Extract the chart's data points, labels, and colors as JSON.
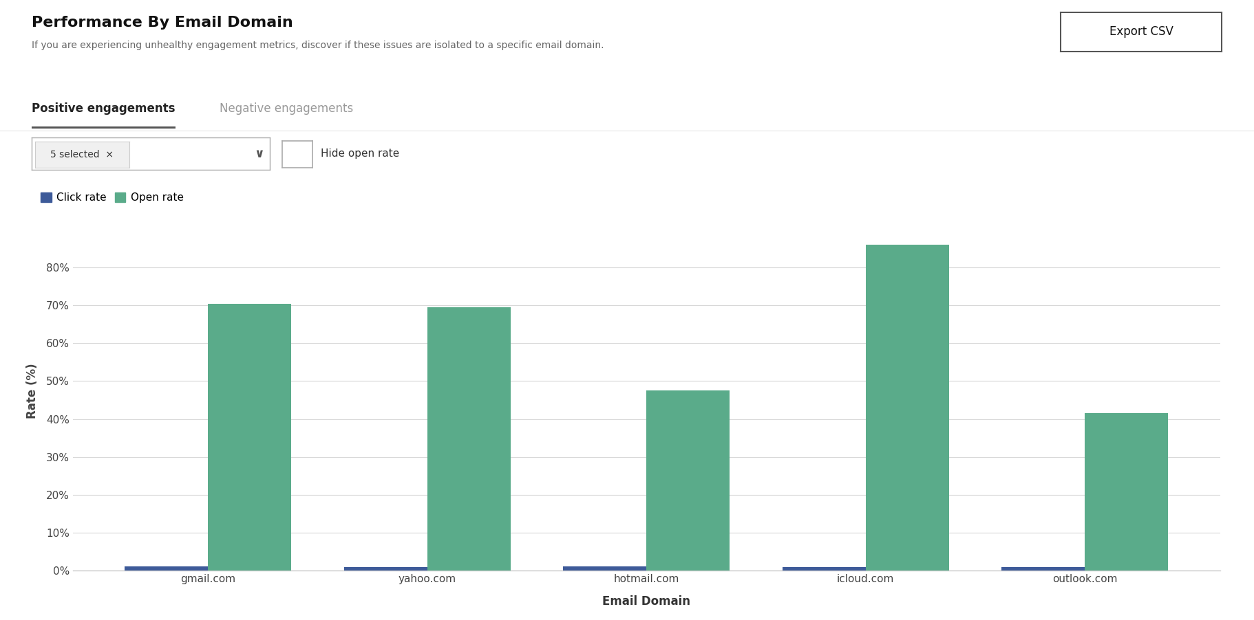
{
  "title": "Performance By Email Domain",
  "subtitle": "If you are experiencing unhealthy engagement metrics, discover if these issues are isolated to a specific email domain.",
  "tab_active": "Positive engagements",
  "tab_inactive": "Negative engagements",
  "filter_label": "5 selected  ×",
  "checkbox_label": "Hide open rate",
  "xlabel": "Email Domain",
  "ylabel": "Rate (%)",
  "categories": [
    "gmail.com",
    "yahoo.com",
    "hotmail.com",
    "icloud.com",
    "outlook.com"
  ],
  "click_rate": [
    1.1,
    0.9,
    1.0,
    0.8,
    0.9
  ],
  "open_rate": [
    70.5,
    69.5,
    47.5,
    86.0,
    41.5
  ],
  "click_color": "#3d5a99",
  "open_color": "#5aab8a",
  "ylim": [
    0,
    95
  ],
  "yticks": [
    0,
    10,
    20,
    30,
    40,
    50,
    60,
    70,
    80
  ],
  "background_color": "#ffffff",
  "grid_color": "#d8d8d8",
  "bar_width": 0.38,
  "legend_click": "Click rate",
  "legend_open": "Open rate",
  "export_button": "Export CSV",
  "title_fontsize": 16,
  "subtitle_fontsize": 10,
  "axis_label_fontsize": 12,
  "tick_fontsize": 11,
  "legend_fontsize": 11
}
